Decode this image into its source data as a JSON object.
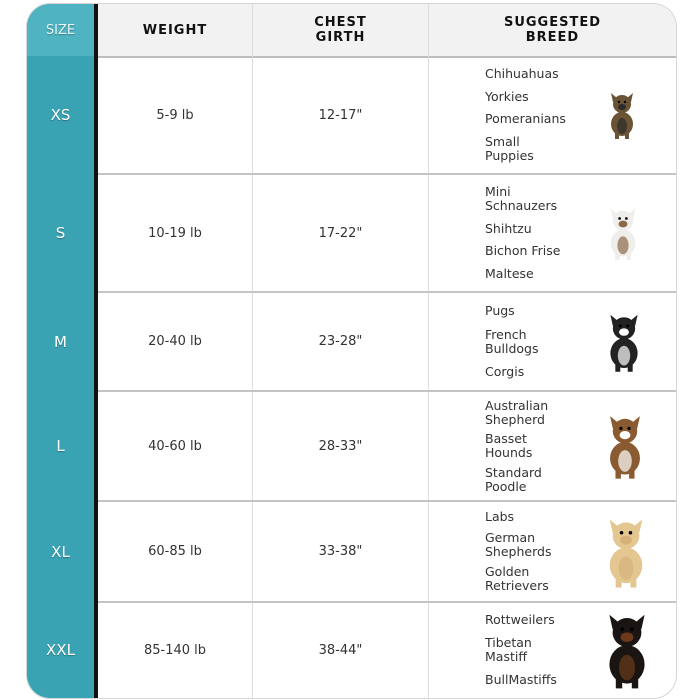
{
  "colors": {
    "size_column": "#3aa3b3",
    "header_bg": "#f2f2f2"
  },
  "headers": {
    "size": "SIZE",
    "weight": "WEIGHT",
    "chest": "CHEST\nGIRTH",
    "breed": "SUGGESTED\nBREED"
  },
  "rows": [
    {
      "size": "XS",
      "weight": "5-9 lb",
      "chest": "12-17\"",
      "breeds": [
        "Chihuahuas",
        "Yorkies",
        "Pomeranians",
        "Small\nPuppies"
      ],
      "dog_icon": "yorkie-photo"
    },
    {
      "size": "S",
      "weight": "10-19 lb",
      "chest": "17-22\"",
      "breeds": [
        "Mini\nSchnauzers",
        "Shihtzu",
        "Bichon Frise",
        "Maltese"
      ],
      "dog_icon": "shihtzu-photo"
    },
    {
      "size": "M",
      "weight": "20-40 lb",
      "chest": "23-28\"",
      "breeds": [
        "Pugs",
        "French\nBulldogs",
        "Corgis"
      ],
      "dog_icon": "boston-terrier-photo"
    },
    {
      "size": "L",
      "weight": "40-60 lb",
      "chest": "28-33\"",
      "breeds": [
        "Australian\nShepherd",
        "Basset\nHounds",
        "Standard\nPoodle"
      ],
      "dog_icon": "basset-hound-photo"
    },
    {
      "size": "XL",
      "weight": "60-85 lb",
      "chest": "33-38\"",
      "breeds": [
        "Labs",
        "German\nShepherds",
        "Golden\nRetrievers"
      ],
      "dog_icon": "labrador-photo"
    },
    {
      "size": "XXL",
      "weight": "85-140 lb",
      "chest": "38-44\"",
      "breeds": [
        "Rottweilers",
        "Tibetan\nMastiff",
        "BullMastiffs"
      ],
      "dog_icon": "tibetan-mastiff-photo"
    }
  ]
}
